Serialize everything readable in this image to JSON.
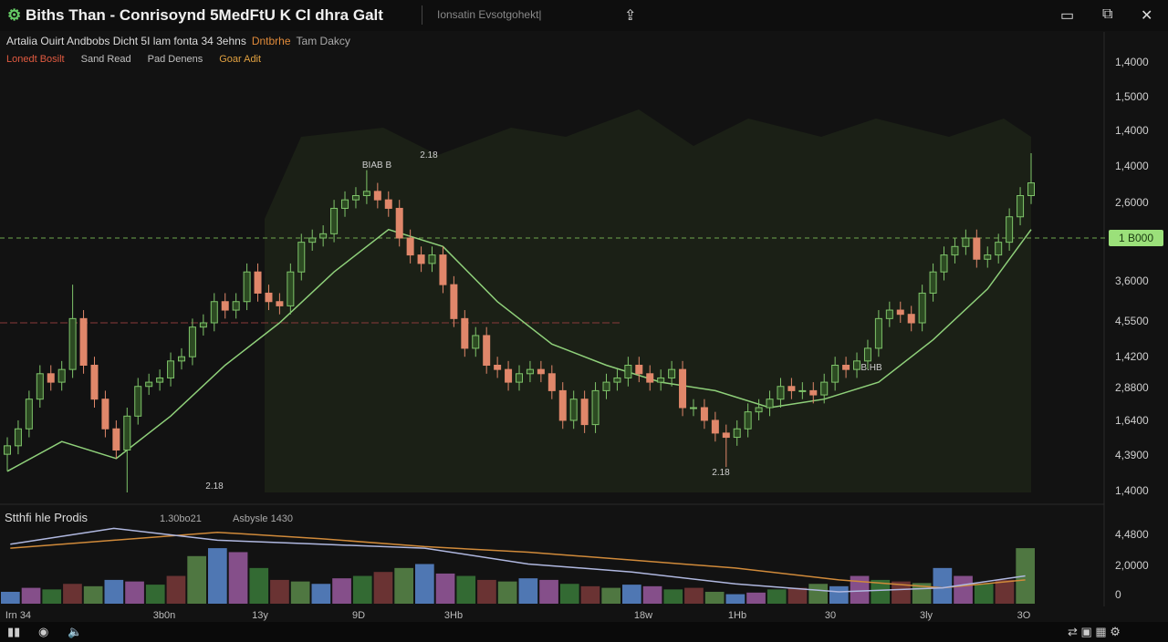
{
  "window": {
    "title": "Biths Than - Conrisoynd 5MedFtU K Cl dhra Galt",
    "search": "Ionsatin Evsotgohekt|"
  },
  "header": {
    "symbol_info": "Artalia Ouirt Andbobs Dicht 5I lam fonta 34 3ehns",
    "status": "Dntbrhe",
    "status2": "Tam Dakcy"
  },
  "tools": [
    "Lonedt Bosilt",
    "Sand Read",
    "Pad Denens",
    "Goar Adit"
  ],
  "time_axis": [
    "Irn 34",
    "3b0n",
    "13y",
    "9D",
    "3Hb",
    "18w",
    "1Hb",
    "30",
    "3ly",
    "3O"
  ],
  "chart_data": [
    {
      "type": "candlestick",
      "up_color": "#7fc46a",
      "down_color": "#e0876a",
      "ylim": [
        0,
        100
      ],
      "price_labels": [
        "1,4000",
        "1,5000",
        "1,4000",
        "1,4000",
        "2,6000",
        "3,6000",
        "4,5500",
        "1,4200",
        "2,8800",
        "1,6400",
        "4,3900",
        "1,4000"
      ],
      "price_marker": "1 B000",
      "price_level": 60,
      "red_level": 40,
      "annotations": [
        "2.18",
        "BIAB B",
        "2.18",
        "2.18",
        "B.HB"
      ],
      "open": [
        9,
        11,
        15,
        22,
        28,
        26,
        29,
        41,
        30,
        22,
        15,
        10,
        18,
        25,
        26,
        27,
        31,
        32,
        39,
        40,
        45,
        43,
        45,
        52,
        47,
        45,
        44,
        52,
        59,
        60,
        61,
        67,
        69,
        70,
        71,
        69,
        67,
        60,
        56,
        54,
        56,
        49,
        41,
        34,
        37,
        30,
        29,
        26,
        28,
        29,
        28,
        24,
        17,
        22,
        16,
        24,
        26,
        27,
        30,
        28,
        26,
        27,
        29,
        20,
        20,
        17,
        14,
        13,
        15,
        19,
        20,
        22,
        25,
        24,
        24,
        23,
        26,
        30,
        29,
        31,
        34,
        41,
        43,
        42,
        40,
        47,
        52,
        56,
        58,
        60,
        55,
        56,
        59,
        65,
        70
      ],
      "high": [
        13,
        17,
        24,
        30,
        30,
        31,
        49,
        43,
        32,
        24,
        17,
        20,
        27,
        28,
        29,
        33,
        34,
        41,
        42,
        47,
        47,
        47,
        54,
        54,
        49,
        47,
        54,
        61,
        62,
        63,
        69,
        71,
        72,
        76,
        73,
        71,
        69,
        62,
        58,
        58,
        58,
        51,
        43,
        39,
        39,
        32,
        31,
        30,
        31,
        31,
        30,
        26,
        24,
        24,
        26,
        28,
        29,
        32,
        32,
        30,
        29,
        31,
        31,
        22,
        22,
        19,
        16,
        17,
        21,
        22,
        24,
        27,
        27,
        26,
        26,
        28,
        32,
        32,
        33,
        36,
        43,
        45,
        45,
        44,
        49,
        54,
        58,
        60,
        62,
        62,
        58,
        61,
        67,
        72,
        80
      ],
      "low": [
        5,
        9,
        13,
        20,
        24,
        24,
        27,
        28,
        20,
        13,
        8,
        0,
        16,
        23,
        24,
        25,
        29,
        30,
        37,
        38,
        41,
        41,
        43,
        45,
        43,
        42,
        42,
        50,
        57,
        58,
        59,
        65,
        67,
        68,
        67,
        65,
        58,
        54,
        52,
        52,
        47,
        39,
        32,
        32,
        28,
        27,
        24,
        24,
        26,
        26,
        22,
        15,
        15,
        14,
        14,
        22,
        24,
        25,
        26,
        24,
        24,
        25,
        18,
        18,
        15,
        12,
        6,
        11,
        13,
        17,
        18,
        20,
        22,
        22,
        21,
        21,
        24,
        27,
        27,
        29,
        32,
        39,
        40,
        38,
        38,
        45,
        50,
        54,
        56,
        53,
        53,
        54,
        57,
        63,
        68
      ],
      "close": [
        11,
        15,
        22,
        28,
        26,
        29,
        41,
        30,
        22,
        15,
        10,
        18,
        25,
        26,
        27,
        31,
        32,
        39,
        40,
        45,
        43,
        45,
        52,
        47,
        45,
        44,
        52,
        59,
        60,
        61,
        67,
        69,
        70,
        71,
        69,
        67,
        60,
        56,
        54,
        56,
        49,
        41,
        34,
        37,
        30,
        29,
        26,
        28,
        29,
        28,
        24,
        17,
        22,
        16,
        24,
        26,
        27,
        30,
        28,
        26,
        27,
        29,
        20,
        20,
        17,
        14,
        13,
        15,
        19,
        20,
        22,
        25,
        24,
        24,
        23,
        26,
        30,
        29,
        31,
        34,
        41,
        43,
        42,
        40,
        47,
        52,
        56,
        58,
        60,
        55,
        56,
        59,
        65,
        70,
        73
      ],
      "ma": {
        "color": "#8fd07a",
        "x": [
          0,
          5,
          10,
          15,
          20,
          25,
          30,
          35,
          40,
          45,
          50,
          55,
          60,
          65,
          70,
          75,
          80,
          85,
          90,
          94
        ],
        "values": [
          5,
          12,
          8,
          18,
          30,
          40,
          52,
          62,
          58,
          45,
          35,
          30,
          26,
          24,
          20,
          22,
          26,
          36,
          48,
          62
        ]
      }
    },
    {
      "type": "bar",
      "title": "Stthfi hle Prodis",
      "legend_texts": [
        "1.30bo21",
        "Asbysle 1430"
      ],
      "axis_labels": [
        "4,4800",
        "2,0000",
        "0"
      ],
      "ylim": [
        0,
        100
      ],
      "palette": [
        "#5a8ad0",
        "#9a5aa0",
        "#3a7a3a",
        "#7a3a3a",
        "#5a8a4a"
      ],
      "values": [
        15,
        20,
        18,
        25,
        22,
        30,
        28,
        24,
        35,
        60,
        70,
        65,
        45,
        30,
        28,
        25,
        32,
        35,
        40,
        45,
        50,
        38,
        35,
        30,
        28,
        32,
        30,
        25,
        22,
        20,
        24,
        22,
        18,
        20,
        15,
        12,
        14,
        18,
        20,
        25,
        22,
        35,
        30,
        28,
        26,
        45,
        35,
        25,
        30,
        70
      ],
      "lines": [
        {
          "color": "#d08a3a",
          "x": [
            0,
            5,
            10,
            15,
            20,
            25,
            30,
            35,
            40,
            45,
            49
          ],
          "values": [
            70,
            80,
            90,
            82,
            72,
            65,
            55,
            45,
            30,
            20,
            30
          ]
        },
        {
          "color": "#b0b8e0",
          "x": [
            0,
            5,
            10,
            15,
            20,
            25,
            30,
            35,
            40,
            45,
            49
          ],
          "values": [
            75,
            95,
            80,
            75,
            70,
            50,
            40,
            25,
            15,
            20,
            35
          ]
        }
      ]
    }
  ]
}
